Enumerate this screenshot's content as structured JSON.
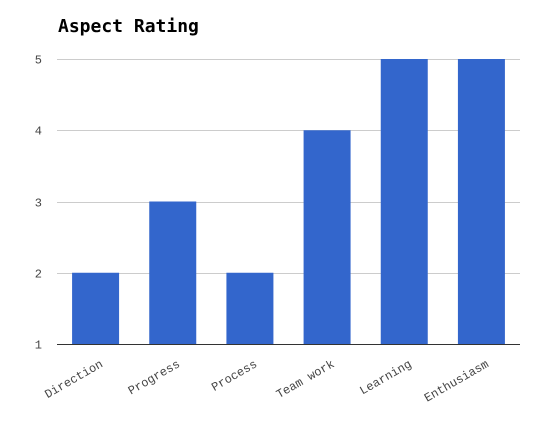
{
  "chart_data": {
    "type": "bar",
    "title": "Aspect Rating",
    "xlabel": "",
    "ylabel": "",
    "categories": [
      "Direction",
      "Progress",
      "Process",
      "Team work",
      "Learning",
      "Enthusiasm"
    ],
    "values": [
      2,
      3,
      2,
      4,
      5,
      5
    ],
    "ylim": [
      1,
      5
    ],
    "yticks": [
      1,
      2,
      3,
      4,
      5
    ],
    "grid": true,
    "legend": "none",
    "bar_color": "#3366cc",
    "grid_color": "#cccccc",
    "axis_color": "#333333"
  }
}
